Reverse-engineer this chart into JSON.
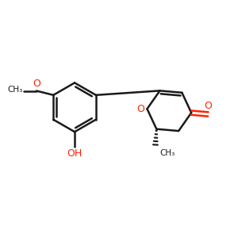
{
  "bg_color": "#ffffff",
  "bond_color": "#1a1a1a",
  "o_color": "#ff2200",
  "line_width": 1.8,
  "figsize": [
    3.0,
    3.0
  ],
  "dpi": 100,
  "xlim": [
    0,
    10
  ],
  "ylim": [
    1,
    9
  ]
}
